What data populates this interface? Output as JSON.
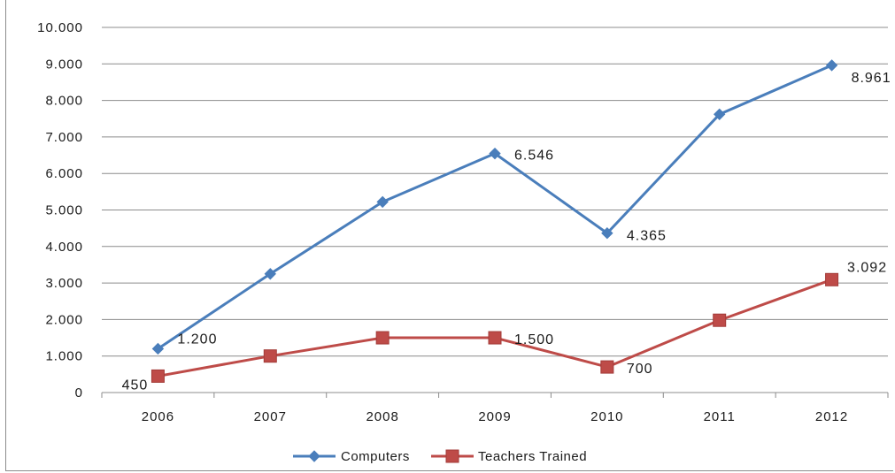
{
  "chart_data": {
    "type": "line",
    "categories": [
      "2006",
      "2007",
      "2008",
      "2009",
      "2010",
      "2011",
      "2012"
    ],
    "ylim": [
      0,
      10000
    ],
    "yticks": [
      0,
      1000,
      2000,
      3000,
      4000,
      5000,
      6000,
      7000,
      8000,
      9000,
      10000
    ],
    "ytick_labels": [
      "0",
      "1.000",
      "2.000",
      "3.000",
      "4.000",
      "5.000",
      "6.000",
      "7.000",
      "8.000",
      "9.000",
      "10.000"
    ],
    "grid": "horizontal",
    "legend_position": "bottom",
    "series": [
      {
        "name": "Computers",
        "color": "#4a7ebb",
        "marker": "diamond",
        "values": [
          1200,
          3250,
          5220,
          6546,
          4365,
          7620,
          8961
        ],
        "data_labels": [
          "1.200",
          "",
          "",
          "6.546",
          "4.365",
          "",
          "8.961"
        ]
      },
      {
        "name": "Teachers Trained",
        "color": "#be4b48",
        "marker": "square",
        "values": [
          450,
          1000,
          1500,
          1500,
          700,
          1980,
          3092
        ],
        "data_labels": [
          "450",
          "",
          "",
          "1.500",
          "700",
          "",
          "3.092"
        ]
      }
    ]
  }
}
